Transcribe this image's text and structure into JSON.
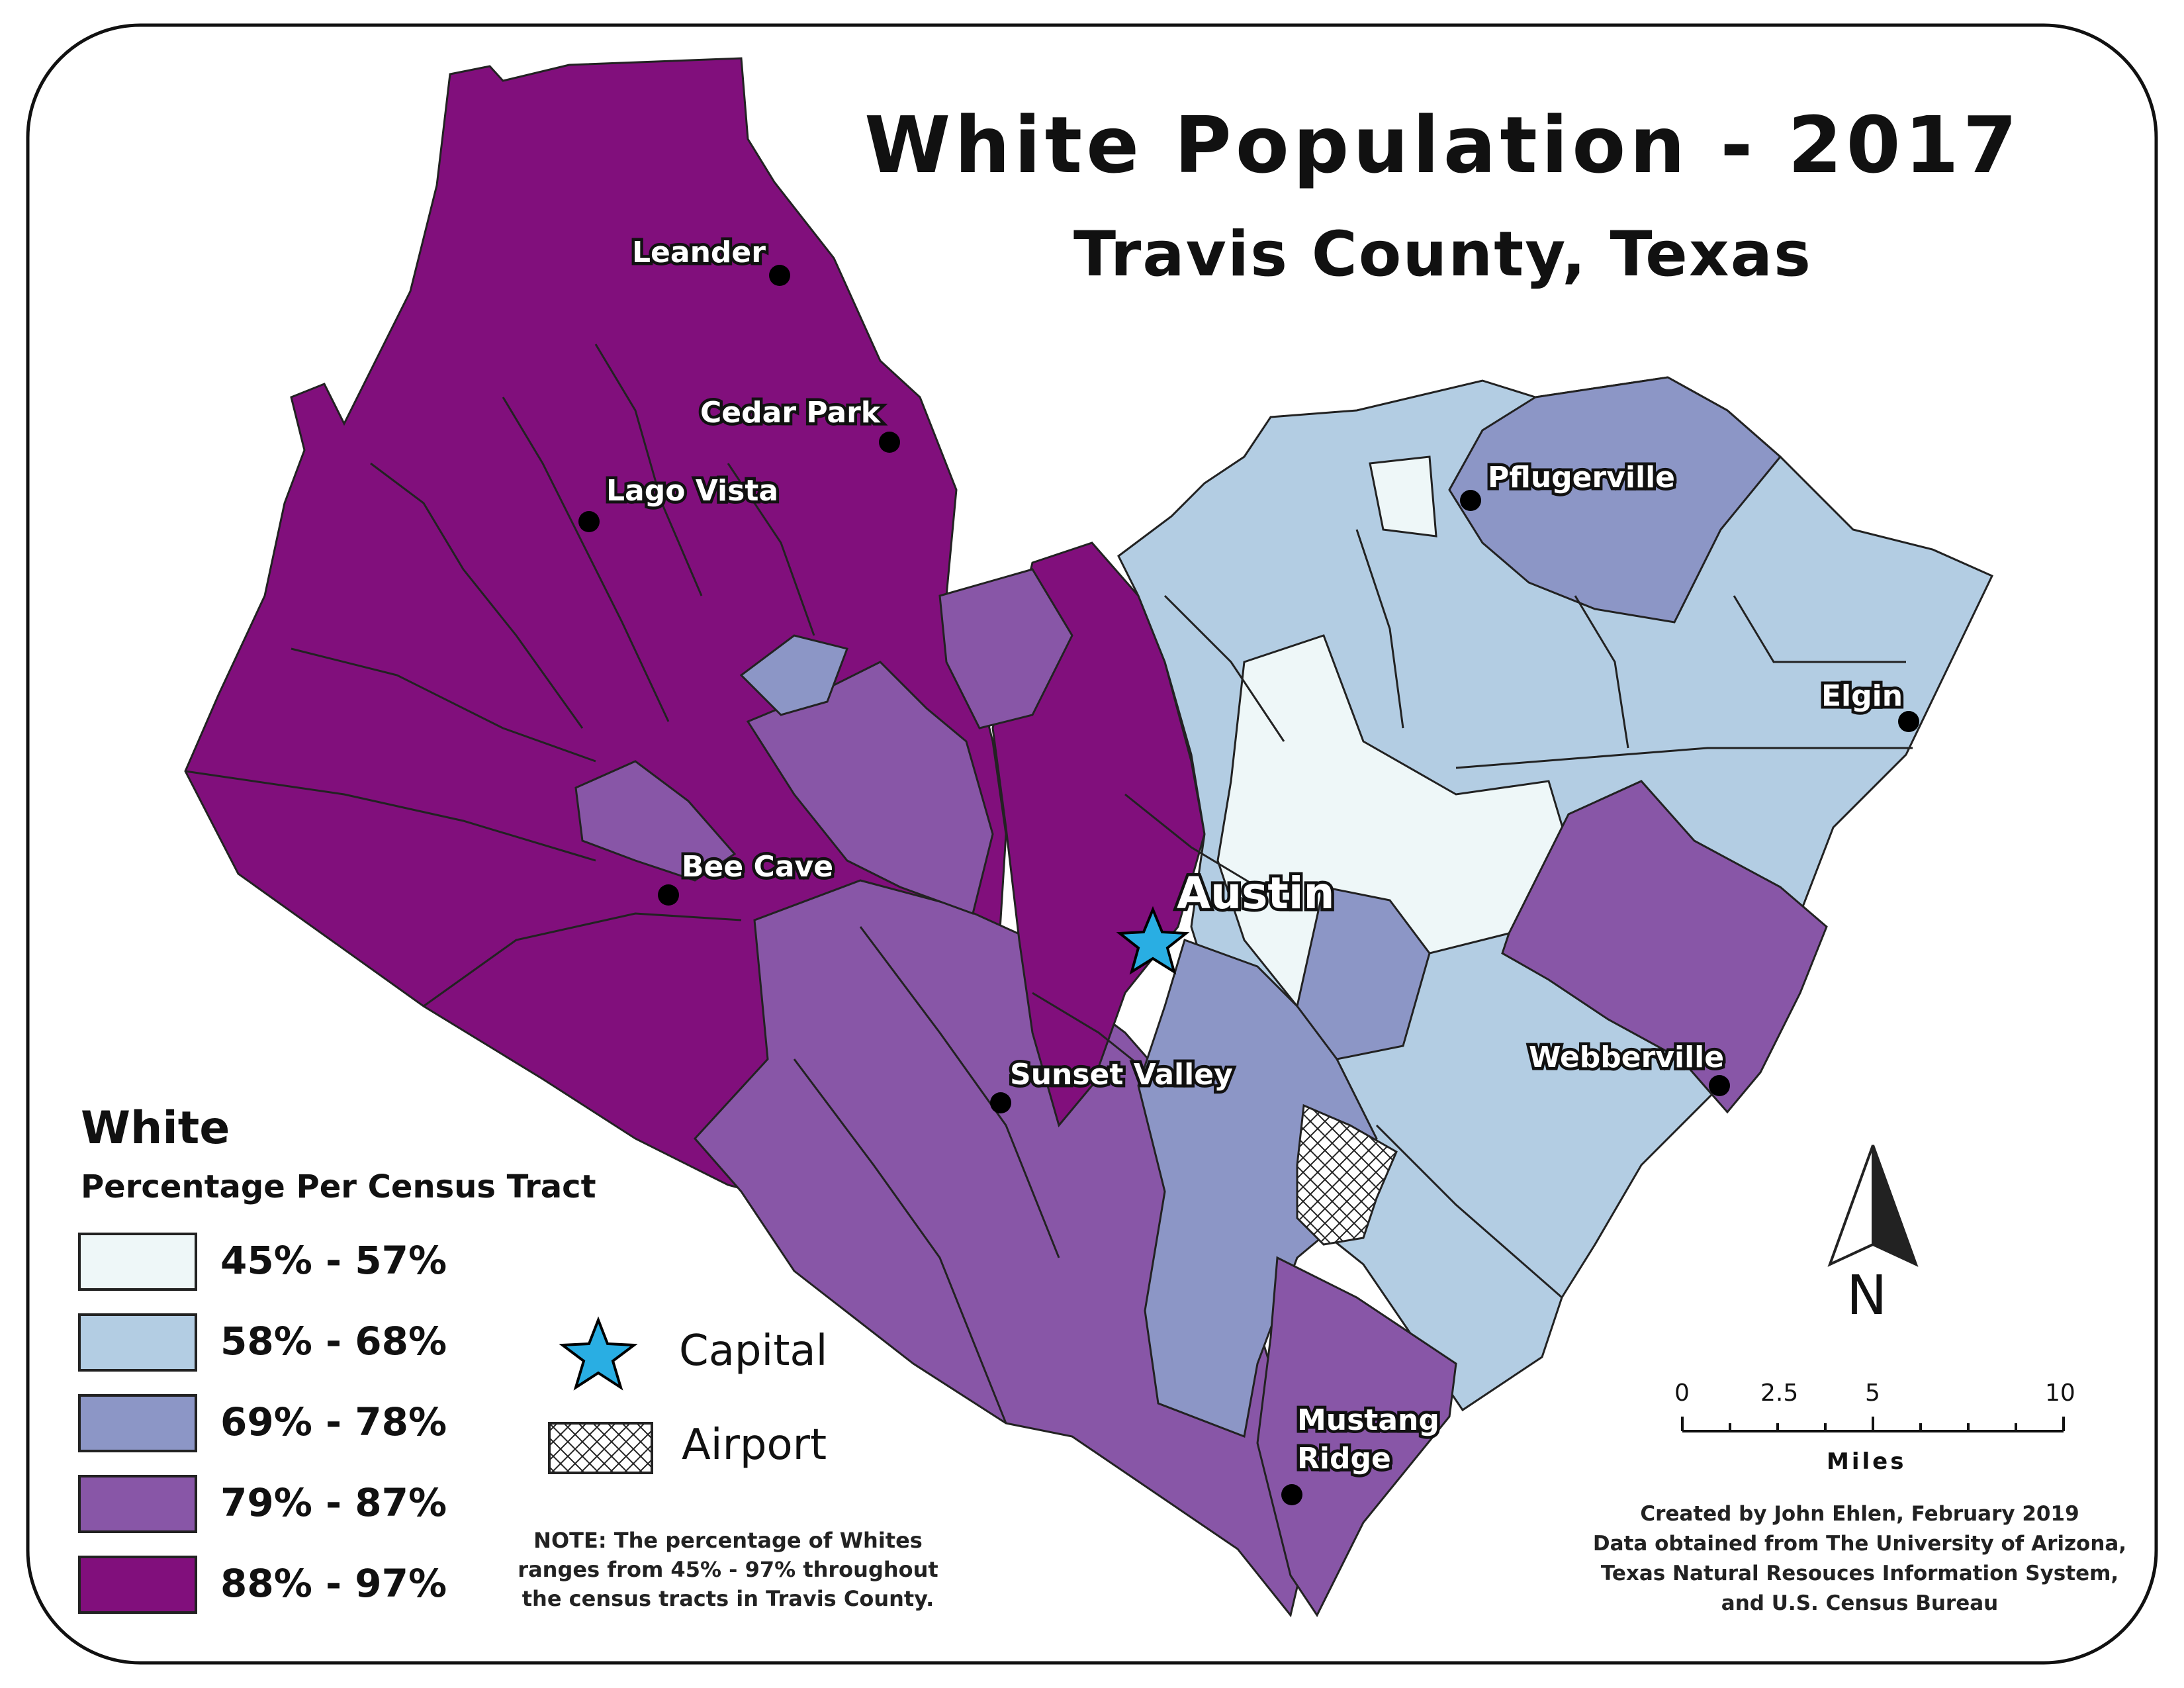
{
  "title": "White Population - 2017",
  "subtitle": "Travis County, Texas",
  "legend": {
    "heading": "White",
    "subheading": "Percentage Per Census Tract",
    "classes": [
      {
        "label": "45% - 57%",
        "color": "#eef7f8"
      },
      {
        "label": "58% - 68%",
        "color": "#b3cde3"
      },
      {
        "label": "69% - 78%",
        "color": "#8c96c6"
      },
      {
        "label": "79% - 87%",
        "color": "#8856a7"
      },
      {
        "label": "88% - 97%",
        "color": "#810f7c"
      }
    ]
  },
  "symbols": {
    "capital_label": "Capital",
    "capital_color": "#29aee3",
    "airport_label": "Airport"
  },
  "places": {
    "leander": "Leander",
    "cedar_park": "Cedar Park",
    "lago_vista": "Lago Vista",
    "pflugerville": "Pflugerville",
    "elgin": "Elgin",
    "bee_cave": "Bee Cave",
    "austin": "Austin",
    "sunset_valley": "Sunset Valley",
    "webberville": "Webberville",
    "mustang_ridge_1": "Mustang",
    "mustang_ridge_2": "Ridge"
  },
  "note": {
    "line1": "NOTE: The percentage of Whites",
    "line2": "ranges from 45% - 97% throughout",
    "line3": "the census tracts in Travis County."
  },
  "credits": {
    "line1": "Created by John Ehlen, February 2019",
    "line2": "Data obtained from The University of Arizona,",
    "line3": "Texas Natural Resouces Information System,",
    "line4": "and U.S. Census Bureau"
  },
  "scale_bar": {
    "ticks": [
      "0",
      "2.5",
      "5",
      "10"
    ],
    "unit": "Miles"
  },
  "north_arrow": {
    "label": "N"
  }
}
